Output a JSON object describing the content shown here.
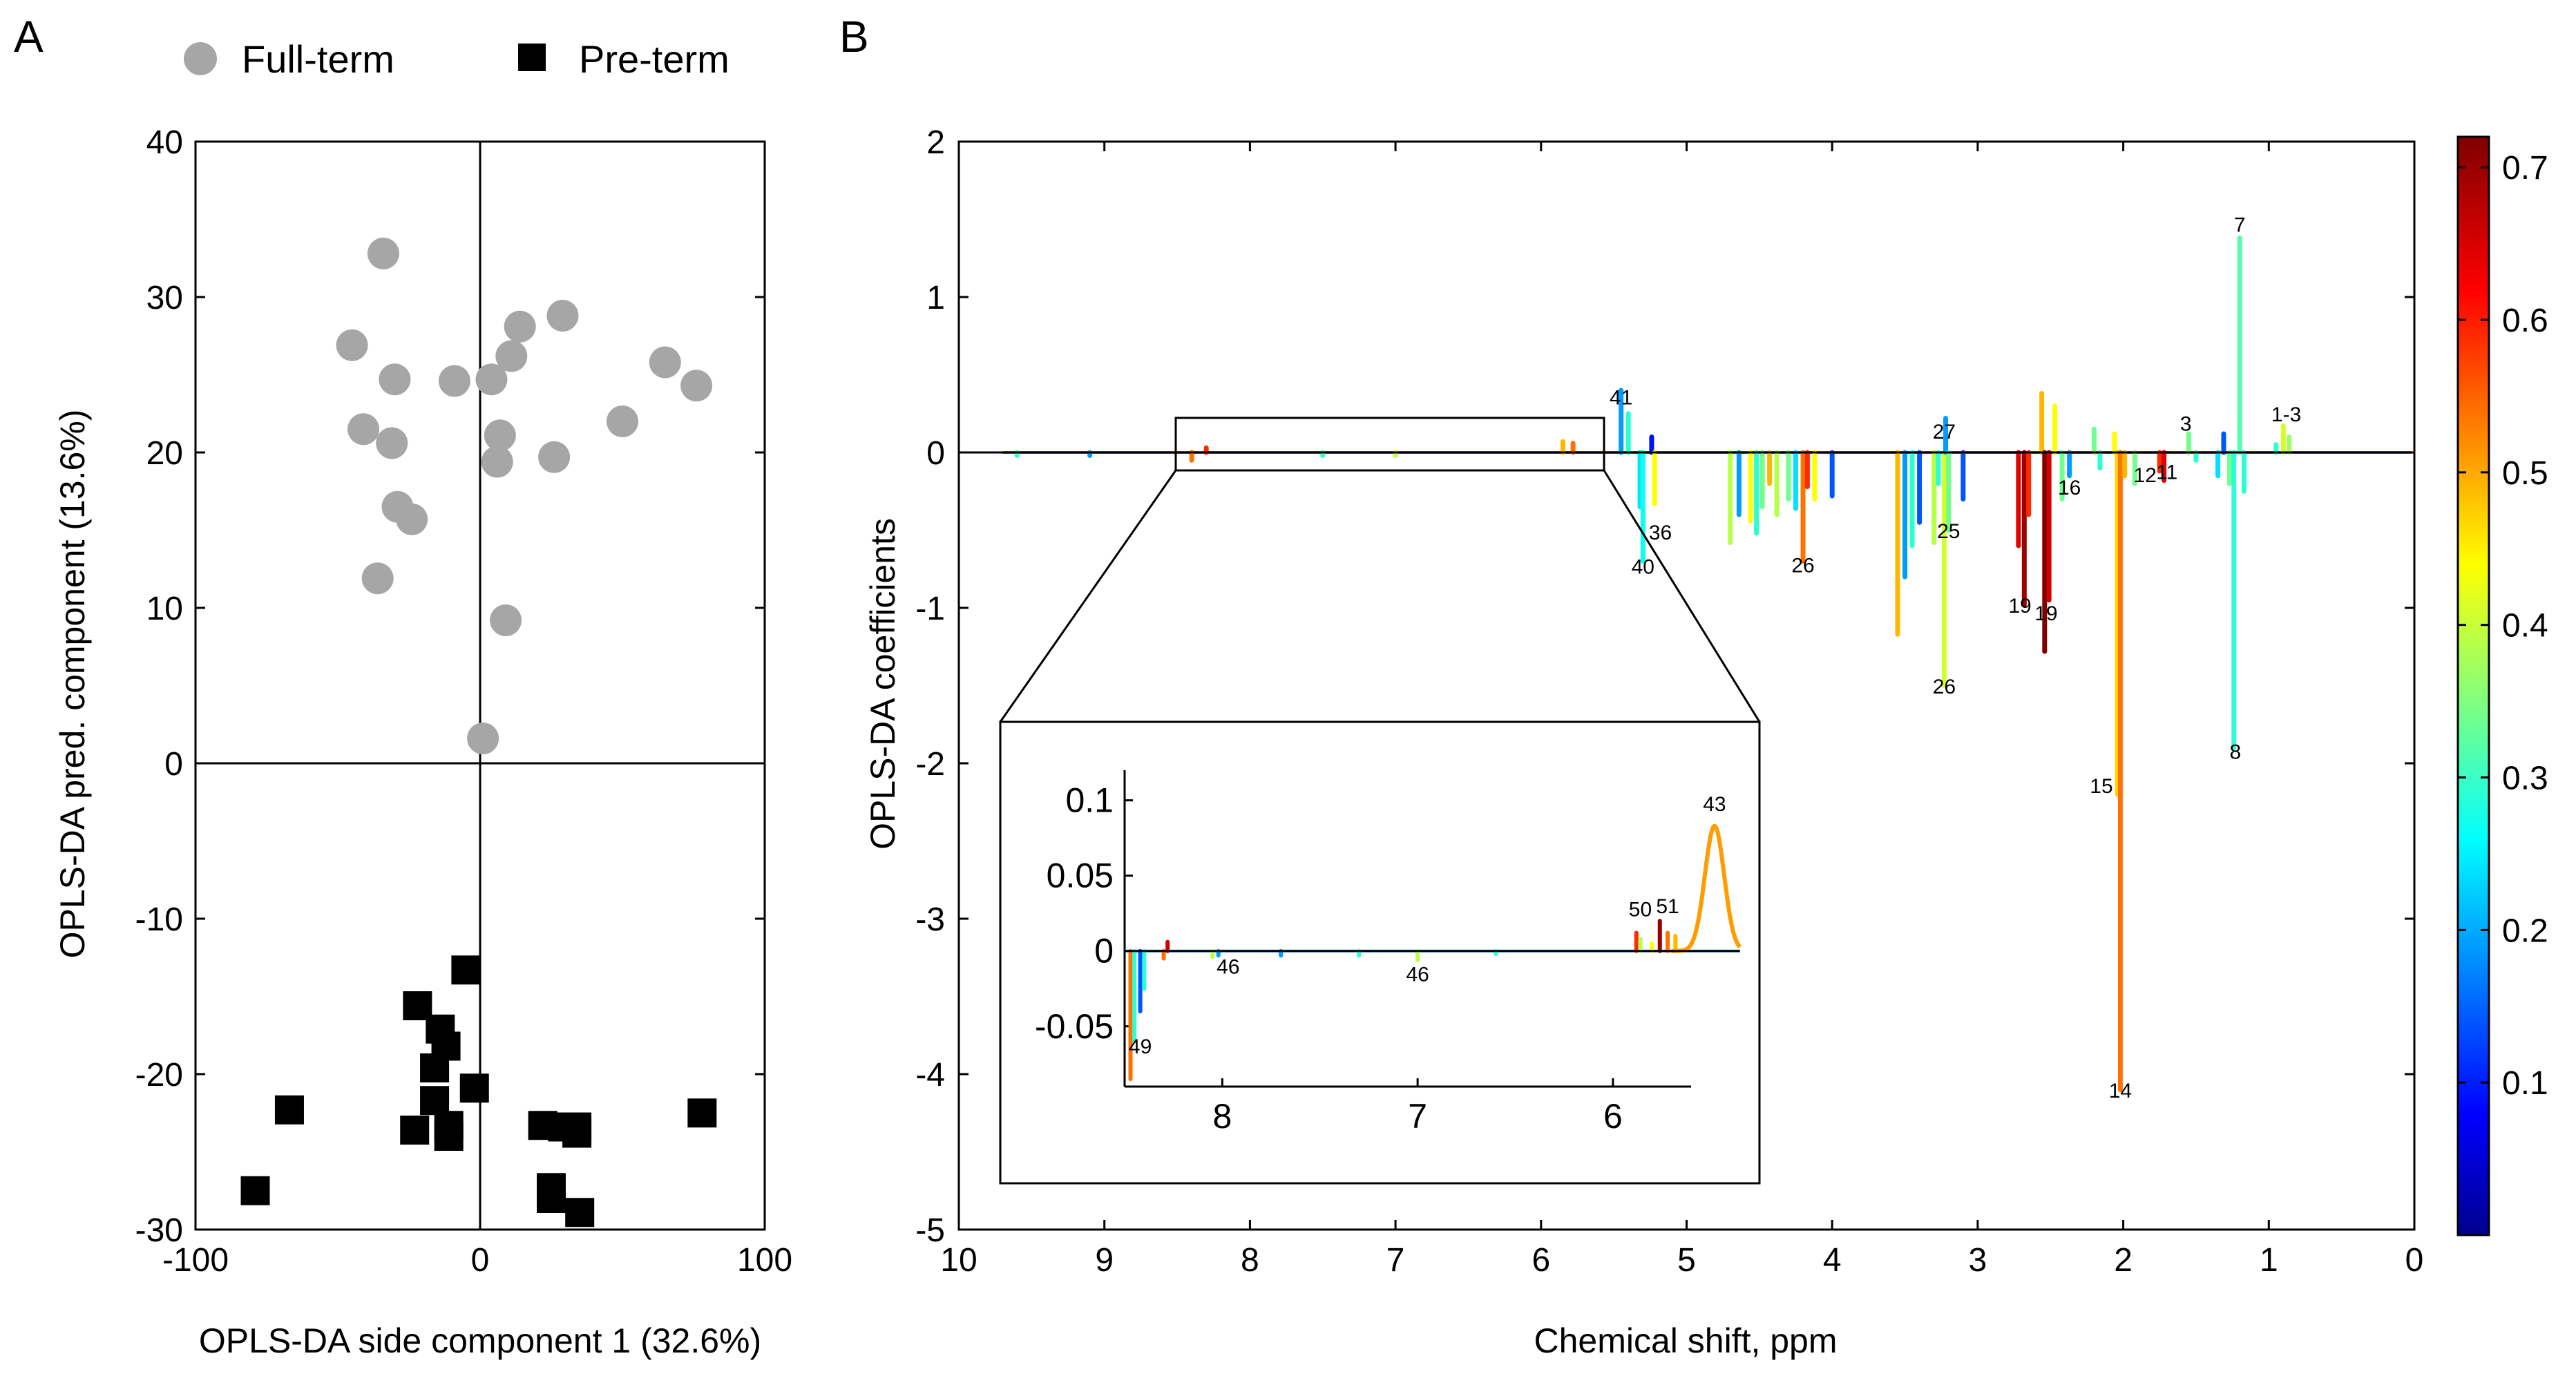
{
  "chart_data": [
    {
      "panel": "A",
      "type": "scatter",
      "xlabel": "OPLS-DA side component 1 (32.6%)",
      "ylabel": "OPLS-DA pred. component (13.6%)",
      "xlim": [
        -100,
        100
      ],
      "ylim": [
        -30,
        40
      ],
      "xticks": [
        "-100",
        "0",
        "100"
      ],
      "yticks": [
        "-30",
        "-20",
        "-10",
        "0",
        "10",
        "20",
        "30",
        "40"
      ],
      "series": [
        {
          "name": "Full-term",
          "color": "#a6a6a6",
          "marker": "circle",
          "points": [
            [
              -34,
              32.8
            ],
            [
              -45,
              26.9
            ],
            [
              -30,
              24.7
            ],
            [
              -9,
              24.6
            ],
            [
              4,
              24.7
            ],
            [
              11,
              26.2
            ],
            [
              14,
              28.1
            ],
            [
              29,
              28.8
            ],
            [
              65,
              25.8
            ],
            [
              76,
              24.3
            ],
            [
              -41,
              21.5
            ],
            [
              -31,
              20.6
            ],
            [
              7,
              21.1
            ],
            [
              6,
              19.4
            ],
            [
              26,
              19.7
            ],
            [
              50,
              22.0
            ],
            [
              -29,
              16.5
            ],
            [
              -24,
              15.7
            ],
            [
              -36,
              11.9
            ],
            [
              9,
              9.2
            ],
            [
              1,
              1.6
            ]
          ]
        },
        {
          "name": "Pre-term",
          "color": "#000000",
          "marker": "square",
          "points": [
            [
              -5,
              -13.3
            ],
            [
              -22,
              -15.6
            ],
            [
              -14,
              -17.1
            ],
            [
              -12,
              -18.2
            ],
            [
              -16,
              -19.6
            ],
            [
              -16,
              -21.7
            ],
            [
              -2,
              -20.9
            ],
            [
              -67,
              -22.3
            ],
            [
              -23,
              -23.6
            ],
            [
              -11,
              -23.3
            ],
            [
              -11,
              -24.0
            ],
            [
              22,
              -23.3
            ],
            [
              29,
              -23.4
            ],
            [
              34,
              -23.4
            ],
            [
              34,
              -23.8
            ],
            [
              78,
              -22.5
            ],
            [
              25,
              -27.3
            ],
            [
              25,
              -28.0
            ],
            [
              35,
              -28.9
            ],
            [
              -79,
              -27.5
            ]
          ]
        }
      ]
    },
    {
      "panel": "B",
      "type": "line",
      "xlabel": "Chemical shift, ppm",
      "ylabel": "OPLS-DA coefficients",
      "xlim": [
        10,
        0
      ],
      "ylim": [
        -5,
        2
      ],
      "xticks": [
        "10",
        "9",
        "8",
        "7",
        "6",
        "5",
        "4",
        "3",
        "2",
        "1",
        "0"
      ],
      "yticks": [
        "-5",
        "-4",
        "-3",
        "-2",
        "-1",
        "0",
        "1",
        "2"
      ],
      "colorbar": {
        "range": [
          0,
          0.72
        ],
        "ticks": [
          "0.1",
          "0.2",
          "0.3",
          "0.4",
          "0.5",
          "0.6",
          "0.7"
        ],
        "colormap": "jet"
      },
      "peaks": [
        {
          "ppm": 9.6,
          "coef": -0.02,
          "r": 0.3
        },
        {
          "ppm": 9.1,
          "coef": -0.02,
          "r": 0.2
        },
        {
          "ppm": 8.4,
          "coef": -0.05,
          "r": 0.55
        },
        {
          "ppm": 8.3,
          "coef": 0.03,
          "r": 0.6
        },
        {
          "ppm": 7.5,
          "coef": -0.02,
          "r": 0.3
        },
        {
          "ppm": 7.0,
          "coef": -0.02,
          "r": 0.4
        },
        {
          "ppm": 5.85,
          "coef": 0.07,
          "r": 0.5
        },
        {
          "ppm": 5.78,
          "coef": 0.06,
          "r": 0.55
        },
        {
          "ppm": 5.45,
          "coef": 0.4,
          "r": 0.2
        },
        {
          "ppm": 5.4,
          "coef": 0.25,
          "r": 0.3
        },
        {
          "ppm": 5.32,
          "coef": -0.35,
          "r": 0.25
        },
        {
          "ppm": 5.3,
          "coef": -0.7,
          "r": 0.28
        },
        {
          "ppm": 5.24,
          "coef": 0.1,
          "r": 0.1
        },
        {
          "ppm": 5.22,
          "coef": -0.33,
          "r": 0.45
        },
        {
          "ppm": 4.7,
          "coef": -0.58,
          "r": 0.4
        },
        {
          "ppm": 4.64,
          "coef": -0.4,
          "r": 0.2
        },
        {
          "ppm": 4.56,
          "coef": -0.44,
          "r": 0.45
        },
        {
          "ppm": 4.52,
          "coef": -0.52,
          "r": 0.3
        },
        {
          "ppm": 4.48,
          "coef": -0.35,
          "r": 0.35
        },
        {
          "ppm": 4.43,
          "coef": -0.2,
          "r": 0.5
        },
        {
          "ppm": 4.38,
          "coef": -0.4,
          "r": 0.4
        },
        {
          "ppm": 4.3,
          "coef": -0.3,
          "r": 0.35
        },
        {
          "ppm": 4.25,
          "coef": -0.36,
          "r": 0.25
        },
        {
          "ppm": 4.2,
          "coef": -0.7,
          "r": 0.55
        },
        {
          "ppm": 4.17,
          "coef": -0.22,
          "r": 0.6
        },
        {
          "ppm": 4.12,
          "coef": -0.3,
          "r": 0.45
        },
        {
          "ppm": 4.0,
          "coef": -0.28,
          "r": 0.15
        },
        {
          "ppm": 3.55,
          "coef": -1.17,
          "r": 0.5
        },
        {
          "ppm": 3.5,
          "coef": -0.8,
          "r": 0.2
        },
        {
          "ppm": 3.45,
          "coef": -0.6,
          "r": 0.3
        },
        {
          "ppm": 3.4,
          "coef": -0.45,
          "r": 0.15
        },
        {
          "ppm": 3.3,
          "coef": -0.58,
          "r": 0.4
        },
        {
          "ppm": 3.27,
          "coef": -0.2,
          "r": 0.3
        },
        {
          "ppm": 3.23,
          "coef": -1.5,
          "r": 0.42
        },
        {
          "ppm": 3.22,
          "coef": 0.22,
          "r": 0.2
        },
        {
          "ppm": 3.2,
          "coef": -0.5,
          "r": 0.35
        },
        {
          "ppm": 3.1,
          "coef": -0.3,
          "r": 0.15
        },
        {
          "ppm": 2.72,
          "coef": -0.6,
          "r": 0.65
        },
        {
          "ppm": 2.68,
          "coef": -0.98,
          "r": 0.7
        },
        {
          "ppm": 2.65,
          "coef": -0.4,
          "r": 0.6
        },
        {
          "ppm": 2.56,
          "coef": 0.38,
          "r": 0.5
        },
        {
          "ppm": 2.54,
          "coef": -1.28,
          "r": 0.72
        },
        {
          "ppm": 2.51,
          "coef": -0.95,
          "r": 0.66
        },
        {
          "ppm": 2.47,
          "coef": 0.3,
          "r": 0.45
        },
        {
          "ppm": 2.42,
          "coef": -0.3,
          "r": 0.35
        },
        {
          "ppm": 2.37,
          "coef": -0.15,
          "r": 0.2
        },
        {
          "ppm": 2.2,
          "coef": 0.15,
          "r": 0.35
        },
        {
          "ppm": 2.16,
          "coef": -0.1,
          "r": 0.3
        },
        {
          "ppm": 2.06,
          "coef": 0.12,
          "r": 0.45
        },
        {
          "ppm": 2.04,
          "coef": -2.2,
          "r": 0.48
        },
        {
          "ppm": 2.02,
          "coef": -4.1,
          "r": 0.55
        },
        {
          "ppm": 1.99,
          "coef": -0.15,
          "r": 0.5
        },
        {
          "ppm": 1.92,
          "coef": -0.2,
          "r": 0.35
        },
        {
          "ppm": 1.75,
          "coef": -0.12,
          "r": 0.6
        },
        {
          "ppm": 1.72,
          "coef": -0.18,
          "r": 0.65
        },
        {
          "ppm": 1.55,
          "coef": 0.12,
          "r": 0.35
        },
        {
          "ppm": 1.5,
          "coef": -0.05,
          "r": 0.3
        },
        {
          "ppm": 1.35,
          "coef": -0.15,
          "r": 0.25
        },
        {
          "ppm": 1.31,
          "coef": 0.12,
          "r": 0.15
        },
        {
          "ppm": 1.27,
          "coef": -0.2,
          "r": 0.35
        },
        {
          "ppm": 1.24,
          "coef": -1.9,
          "r": 0.3
        },
        {
          "ppm": 1.2,
          "coef": 1.38,
          "r": 0.33
        },
        {
          "ppm": 1.17,
          "coef": -0.25,
          "r": 0.3
        },
        {
          "ppm": 0.95,
          "coef": 0.05,
          "r": 0.3
        },
        {
          "ppm": 0.9,
          "coef": 0.17,
          "r": 0.42
        },
        {
          "ppm": 0.86,
          "coef": 0.1,
          "r": 0.38
        }
      ],
      "annotations": [
        {
          "text": "41",
          "x": 5.45,
          "y": 0.31
        },
        {
          "text": "36",
          "x": 5.18,
          "y": -0.56
        },
        {
          "text": "40",
          "x": 5.3,
          "y": -0.78
        },
        {
          "text": "26",
          "x": 4.2,
          "y": -0.77
        },
        {
          "text": "27",
          "x": 3.23,
          "y": 0.09
        },
        {
          "text": "25",
          "x": 3.2,
          "y": -0.55
        },
        {
          "text": "26",
          "x": 3.23,
          "y": -1.55
        },
        {
          "text": "19",
          "x": 2.71,
          "y": -1.03
        },
        {
          "text": "19",
          "x": 2.53,
          "y": -1.08
        },
        {
          "text": "16",
          "x": 2.37,
          "y": -0.27
        },
        {
          "text": "12",
          "x": 1.85,
          "y": -0.19
        },
        {
          "text": "11",
          "x": 1.7,
          "y": -0.17
        },
        {
          "text": "3",
          "x": 1.57,
          "y": 0.14
        },
        {
          "text": "1-3",
          "x": 0.88,
          "y": 0.2
        },
        {
          "text": "7",
          "x": 1.2,
          "y": 1.42
        },
        {
          "text": "8",
          "x": 1.23,
          "y": -1.97
        },
        {
          "text": "15",
          "x": 2.15,
          "y": -2.19
        },
        {
          "text": "14",
          "x": 2.02,
          "y": -4.15
        }
      ],
      "inset": {
        "xlim": [
          8.5,
          5.6
        ],
        "ylim": [
          -0.09,
          0.12
        ],
        "xticks": [
          "8",
          "7",
          "6"
        ],
        "yticks": [
          "-0.05",
          "0",
          "0.05",
          "0.1"
        ],
        "peaks": [
          {
            "ppm": 8.47,
            "coef": -0.085,
            "r": 0.55
          },
          {
            "ppm": 8.45,
            "coef": -0.06,
            "r": 0.3
          },
          {
            "ppm": 8.42,
            "coef": -0.04,
            "r": 0.15
          },
          {
            "ppm": 8.4,
            "coef": -0.025,
            "r": 0.3
          },
          {
            "ppm": 8.3,
            "coef": -0.005,
            "r": 0.55
          },
          {
            "ppm": 8.28,
            "coef": 0.006,
            "r": 0.66
          },
          {
            "ppm": 8.05,
            "coef": -0.004,
            "r": 0.4
          },
          {
            "ppm": 8.02,
            "coef": -0.003,
            "r": 0.2
          },
          {
            "ppm": 7.7,
            "coef": -0.003,
            "r": 0.2
          },
          {
            "ppm": 7.3,
            "coef": -0.003,
            "r": 0.3
          },
          {
            "ppm": 7.0,
            "coef": -0.006,
            "r": 0.4
          },
          {
            "ppm": 6.6,
            "coef": -0.002,
            "r": 0.3
          },
          {
            "ppm": 5.88,
            "coef": 0.012,
            "r": 0.6
          },
          {
            "ppm": 5.86,
            "coef": 0.008,
            "r": 0.4
          },
          {
            "ppm": 5.8,
            "coef": 0.005,
            "r": 0.45
          },
          {
            "ppm": 5.76,
            "coef": 0.02,
            "r": 0.7
          },
          {
            "ppm": 5.72,
            "coef": 0.012,
            "r": 0.55
          },
          {
            "ppm": 5.68,
            "coef": 0.01,
            "r": 0.5
          }
        ],
        "broad_peak": {
          "ppm": 5.48,
          "height": 0.083,
          "width": 0.07,
          "r": 0.52
        },
        "annotations": [
          {
            "text": "43",
            "x": 5.48,
            "y": 0.093
          },
          {
            "text": "50",
            "x": 5.86,
            "y": 0.023
          },
          {
            "text": "51",
            "x": 5.72,
            "y": 0.025
          },
          {
            "text": "46",
            "x": 7.97,
            "y": -0.015
          },
          {
            "text": "46",
            "x": 7.0,
            "y": -0.02
          },
          {
            "text": "49",
            "x": 8.42,
            "y": -0.068
          }
        ]
      }
    }
  ],
  "figure": {
    "panel_a_label": "A",
    "panel_b_label": "B",
    "legend": [
      {
        "label": "Full-term",
        "marker": "circle",
        "color": "#a6a6a6"
      },
      {
        "label": "Pre-term",
        "marker": "square",
        "color": "#000000"
      }
    ]
  }
}
